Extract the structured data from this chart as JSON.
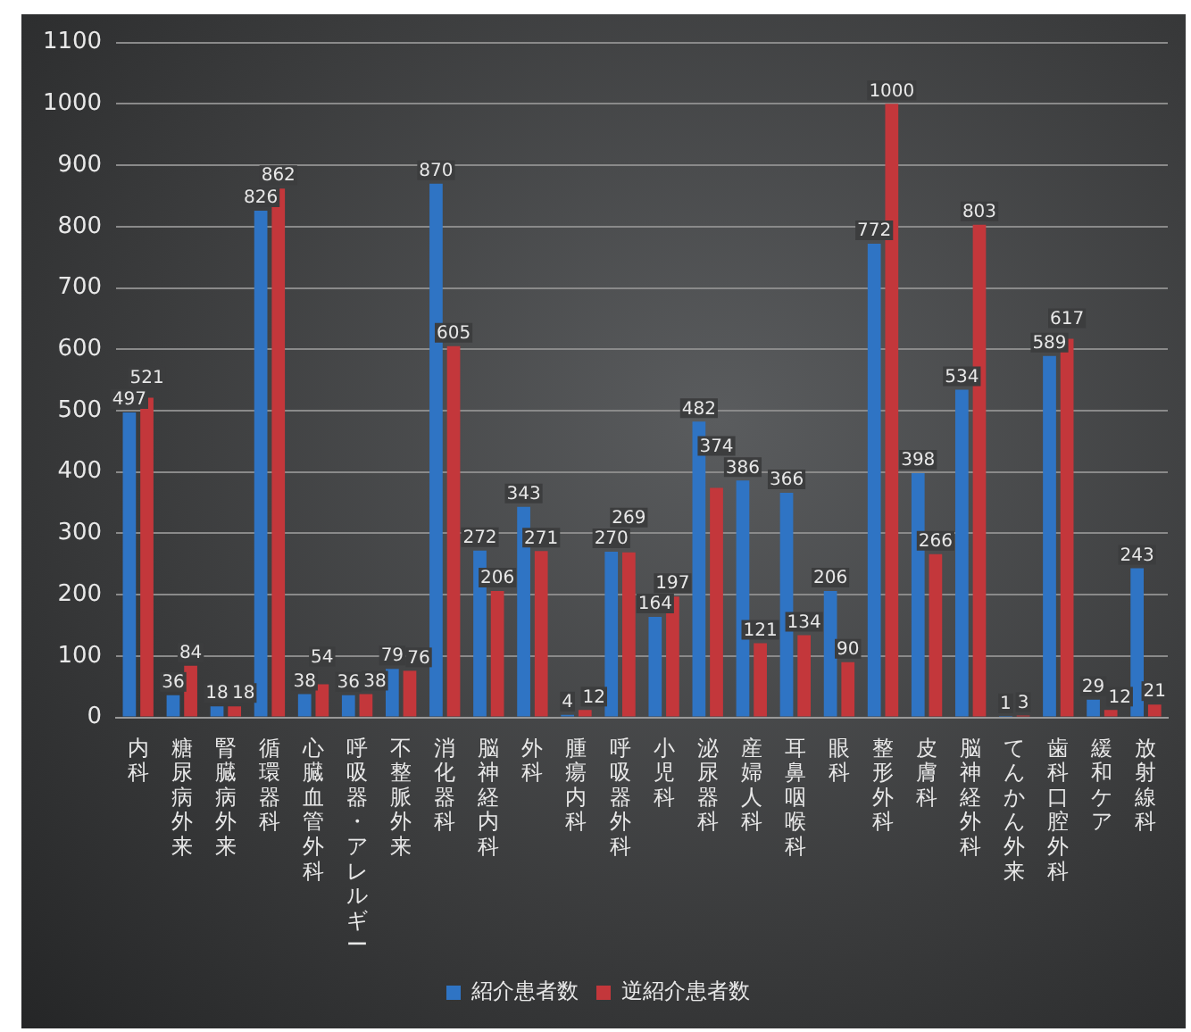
{
  "chart_data": {
    "type": "bar",
    "categories": [
      "内科",
      "糖尿病外来",
      "腎臓病外来",
      "循環器科",
      "心臓血管外科",
      "呼吸器・アレルギー",
      "不整脈外来",
      "消化器科",
      "脳神経内科",
      "外科",
      "腫瘍内科",
      "呼吸器外科",
      "小児科",
      "泌尿器科",
      "産婦人科",
      "耳鼻咽喉科",
      "眼科",
      "整形外科",
      "皮膚科",
      "脳神経外科",
      "てんかん外来",
      "歯科口腔外科",
      "緩和ケア",
      "放射線科"
    ],
    "series": [
      {
        "name": "紹介患者数",
        "color": "#2f74c4",
        "values": [
          497,
          36,
          18,
          826,
          38,
          36,
          79,
          870,
          272,
          343,
          4,
          270,
          164,
          482,
          386,
          366,
          206,
          772,
          398,
          534,
          1,
          589,
          29,
          243
        ]
      },
      {
        "name": "逆紹介患者数",
        "color": "#c3373b",
        "values": [
          521,
          84,
          18,
          862,
          54,
          38,
          76,
          605,
          206,
          271,
          12,
          269,
          197,
          374,
          121,
          134,
          90,
          1000,
          266,
          803,
          3,
          617,
          12,
          21
        ]
      }
    ],
    "ylim": [
      0,
      1100
    ],
    "yticks": [
      0,
      100,
      200,
      300,
      400,
      500,
      600,
      700,
      800,
      900,
      1000,
      1100
    ],
    "grid": "y",
    "legend": "bottom",
    "data_labels": true
  }
}
